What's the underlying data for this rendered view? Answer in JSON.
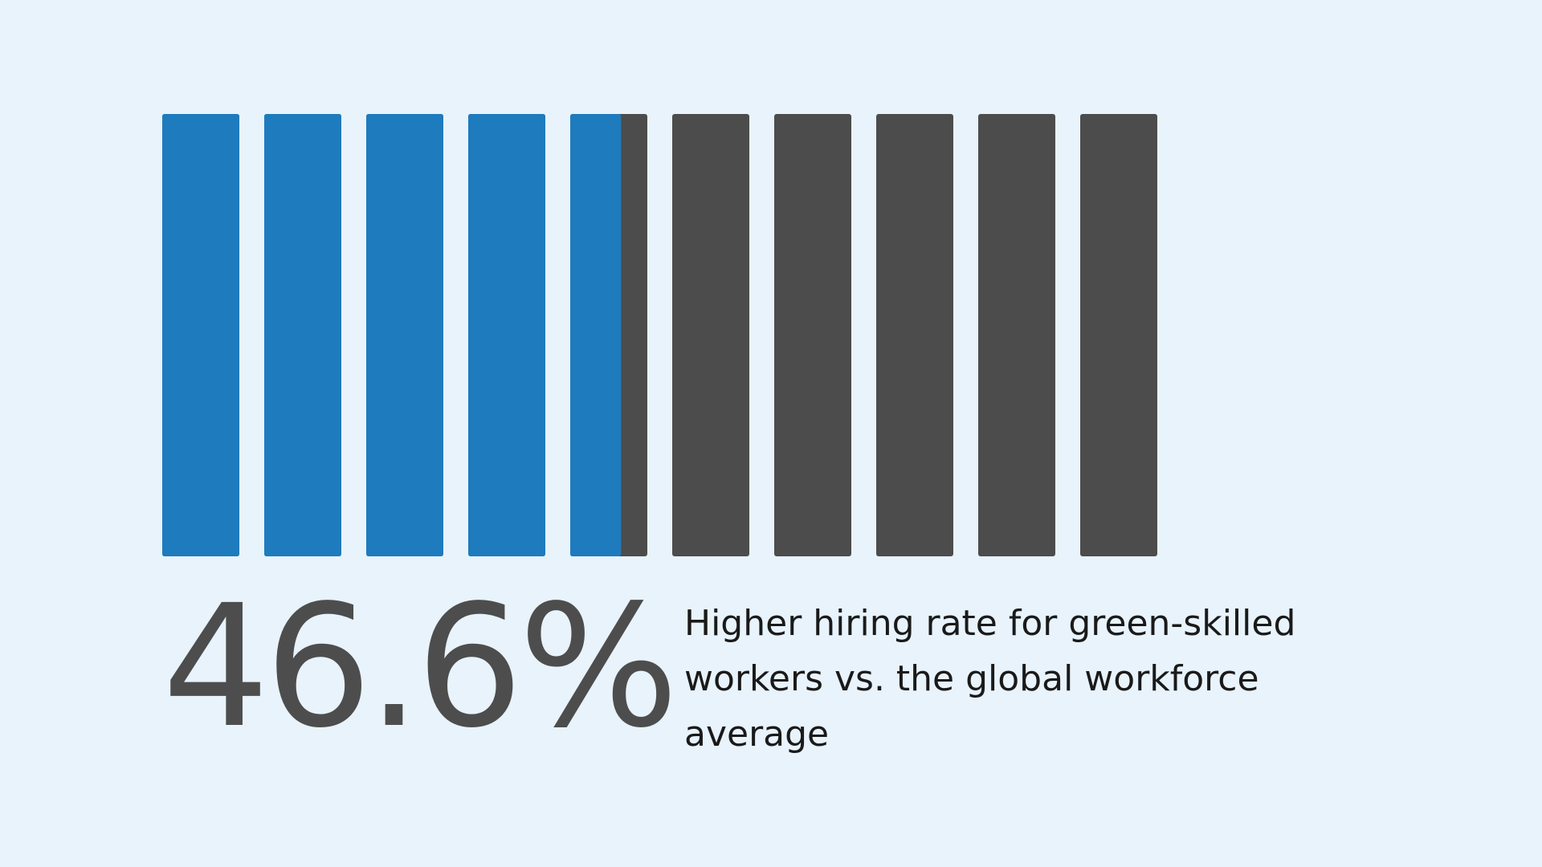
{
  "chart_data": {
    "type": "bar",
    "title": "",
    "xlabel": "",
    "ylabel": "",
    "value_percent": 46.6,
    "unit_count": 10,
    "filled_color": "#1E7BBD",
    "empty_color": "#4C4C4C",
    "stat_label": "46.6%",
    "caption": "Higher hiring rate for green-skilled workers vs. the global workforce average"
  }
}
